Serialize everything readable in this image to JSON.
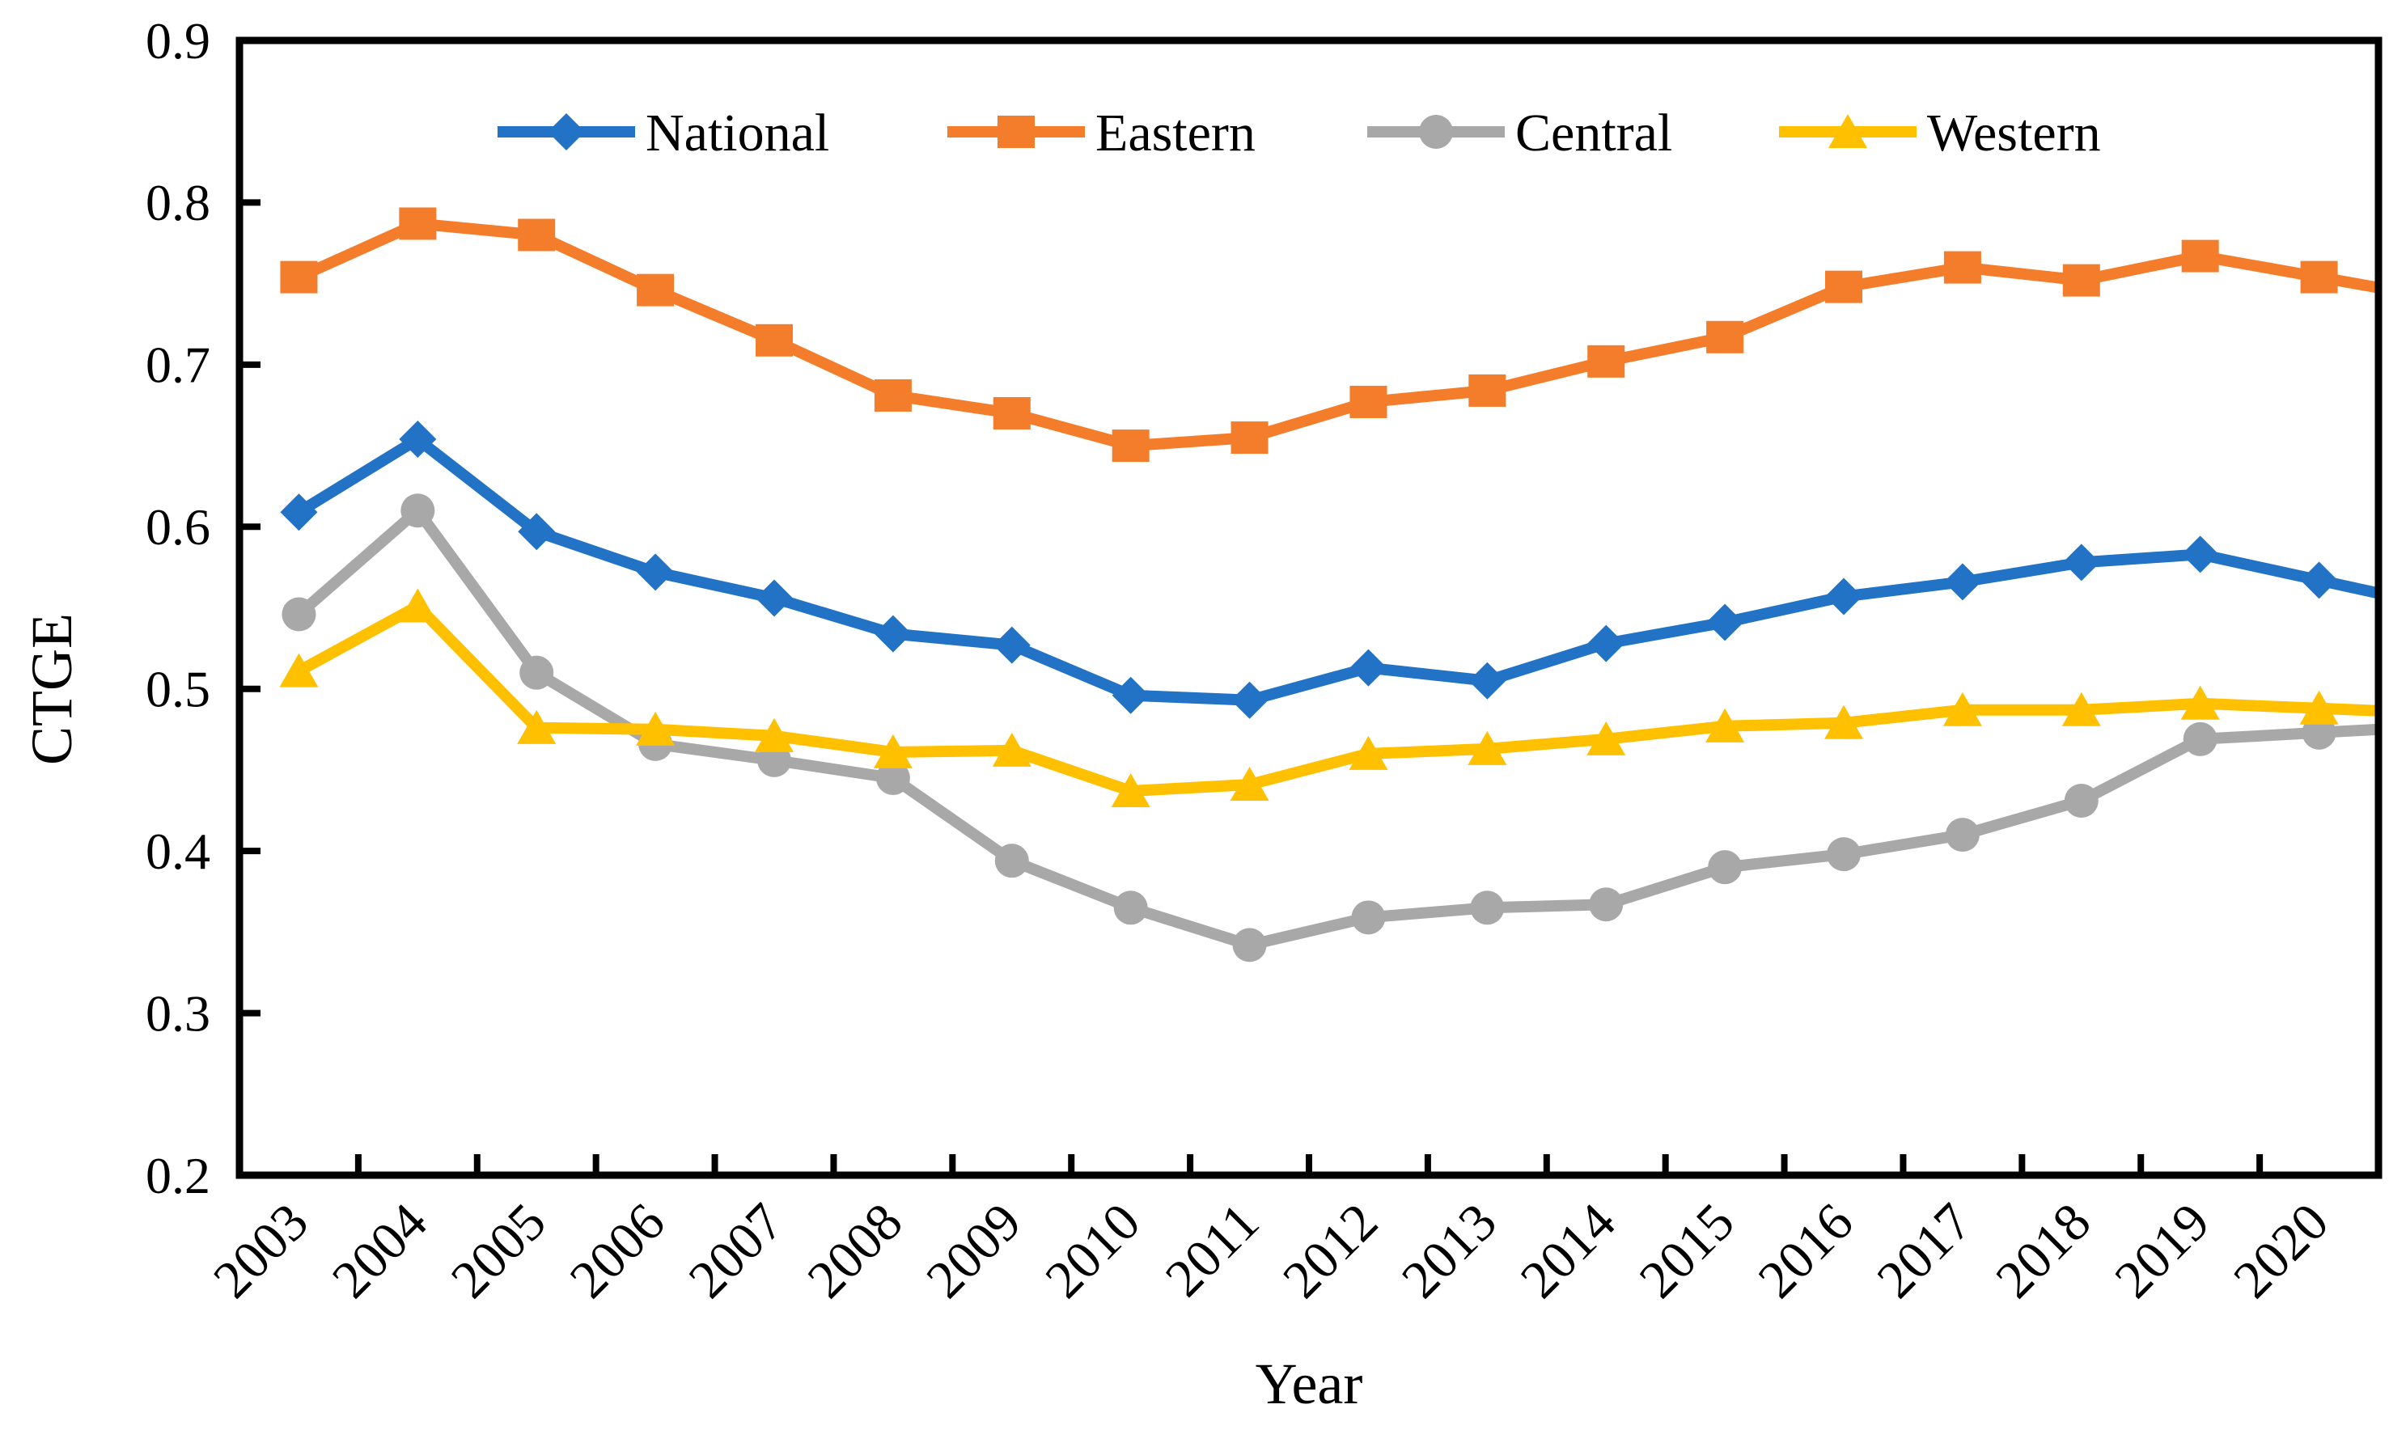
{
  "page": {
    "background": "#ffffff"
  },
  "chart_data": {
    "type": "line",
    "title": "",
    "xlabel": "Year",
    "ylabel": "CTGE",
    "categories": [
      "2003",
      "2004",
      "2005",
      "2006",
      "2007",
      "2008",
      "2009",
      "2010",
      "2011",
      "2012",
      "2013",
      "2014",
      "2015",
      "2016",
      "2017",
      "2018",
      "2019",
      "2020"
    ],
    "ylim": [
      0.2,
      0.9
    ],
    "yticks": [
      "0.9",
      "0.8",
      "0.7",
      "0.6",
      "0.5",
      "0.4",
      "0.3",
      "0.2"
    ],
    "grid": false,
    "legend_position": "top-inside",
    "axis_color": "#000000",
    "series": [
      {
        "name": "National",
        "color": "#2273C5",
        "marker": "diamond",
        "values": [
          0.609,
          0.654,
          0.597,
          0.572,
          0.556,
          0.534,
          0.527,
          0.496,
          0.493,
          0.513,
          0.505,
          0.528,
          0.541,
          0.557,
          0.566,
          0.578,
          0.583,
          0.567
        ]
      },
      {
        "name": "Eastern",
        "color": "#F47D2B",
        "marker": "square",
        "values": [
          0.754,
          0.787,
          0.78,
          0.746,
          0.715,
          0.681,
          0.67,
          0.65,
          0.655,
          0.677,
          0.684,
          0.702,
          0.717,
          0.748,
          0.76,
          0.752,
          0.767,
          0.754
        ]
      },
      {
        "name": "Central",
        "color": "#A8A8A8",
        "marker": "circle",
        "values": [
          0.546,
          0.61,
          0.51,
          0.466,
          0.456,
          0.445,
          0.394,
          0.365,
          0.342,
          0.359,
          0.365,
          0.367,
          0.39,
          0.398,
          0.41,
          0.431,
          0.469,
          0.473
        ]
      },
      {
        "name": "Western",
        "color": "#FFC000",
        "marker": "triangle",
        "values": [
          0.511,
          0.551,
          0.476,
          0.475,
          0.471,
          0.461,
          0.462,
          0.437,
          0.441,
          0.46,
          0.463,
          0.469,
          0.477,
          0.479,
          0.487,
          0.487,
          0.491,
          0.488
        ]
      }
    ]
  }
}
